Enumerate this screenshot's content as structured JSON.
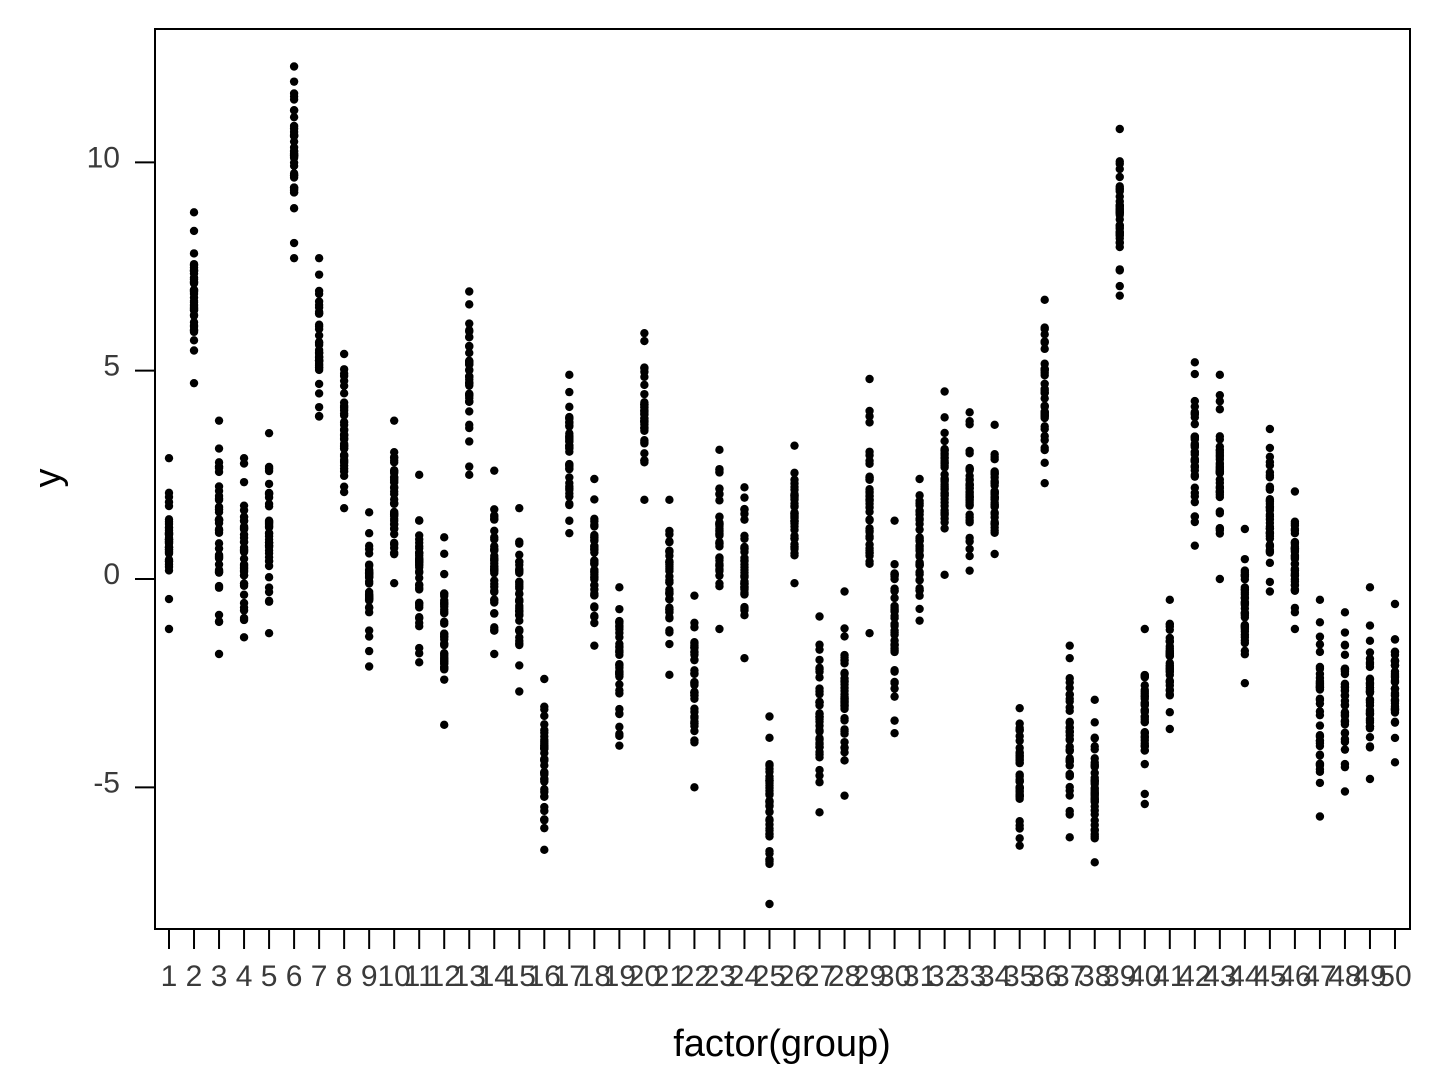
{
  "chart_data": {
    "type": "scatter",
    "xlabel": "factor(group)",
    "ylabel": "y",
    "x_categories": [
      "1",
      "2",
      "3",
      "4",
      "5",
      "6",
      "7",
      "8",
      "9",
      "10",
      "11",
      "12",
      "13",
      "14",
      "15",
      "16",
      "17",
      "18",
      "19",
      "20",
      "21",
      "22",
      "23",
      "24",
      "25",
      "26",
      "27",
      "28",
      "29",
      "30",
      "31",
      "32",
      "33",
      "34",
      "35",
      "36",
      "37",
      "38",
      "39",
      "40",
      "41",
      "42",
      "43",
      "44",
      "45",
      "46",
      "47",
      "48",
      "49",
      "50"
    ],
    "y_ticks": [
      -5,
      0,
      5,
      10
    ],
    "y_tick_labels": [
      "-5",
      "0",
      "5",
      "10"
    ],
    "ylim": [
      -8.4,
      13.2
    ],
    "grid": false,
    "legend": "none",
    "point_color": "#000000",
    "group_ranges": [
      {
        "group": "1",
        "min": -1.2,
        "max": 2.9
      },
      {
        "group": "2",
        "min": 4.7,
        "max": 8.8
      },
      {
        "group": "3",
        "min": -1.8,
        "max": 3.8
      },
      {
        "group": "4",
        "min": -1.4,
        "max": 2.9
      },
      {
        "group": "5",
        "min": -1.3,
        "max": 3.5
      },
      {
        "group": "6",
        "min": 7.7,
        "max": 12.3
      },
      {
        "group": "7",
        "min": 3.9,
        "max": 7.7
      },
      {
        "group": "8",
        "min": 1.7,
        "max": 5.4
      },
      {
        "group": "9",
        "min": -2.1,
        "max": 1.6
      },
      {
        "group": "10",
        "min": -0.1,
        "max": 3.8
      },
      {
        "group": "11",
        "min": -2.0,
        "max": 2.5
      },
      {
        "group": "12",
        "min": -3.5,
        "max": 1.0
      },
      {
        "group": "13",
        "min": 2.5,
        "max": 6.9
      },
      {
        "group": "14",
        "min": -1.8,
        "max": 2.6
      },
      {
        "group": "15",
        "min": -2.7,
        "max": 1.7
      },
      {
        "group": "16",
        "min": -6.5,
        "max": -2.4
      },
      {
        "group": "17",
        "min": 1.1,
        "max": 4.9
      },
      {
        "group": "18",
        "min": -1.6,
        "max": 2.4
      },
      {
        "group": "19",
        "min": -4.0,
        "max": -0.2
      },
      {
        "group": "20",
        "min": 1.9,
        "max": 5.9
      },
      {
        "group": "21",
        "min": -2.3,
        "max": 1.9
      },
      {
        "group": "22",
        "min": -5.0,
        "max": -0.4
      },
      {
        "group": "23",
        "min": -1.2,
        "max": 3.1
      },
      {
        "group": "24",
        "min": -1.9,
        "max": 2.2
      },
      {
        "group": "25",
        "min": -7.8,
        "max": -3.3
      },
      {
        "group": "26",
        "min": -0.1,
        "max": 3.2
      },
      {
        "group": "27",
        "min": -5.6,
        "max": -0.9
      },
      {
        "group": "28",
        "min": -5.2,
        "max": -0.3
      },
      {
        "group": "29",
        "min": -1.3,
        "max": 4.8
      },
      {
        "group": "30",
        "min": -3.7,
        "max": 1.4
      },
      {
        "group": "31",
        "min": -1.0,
        "max": 2.4
      },
      {
        "group": "32",
        "min": 0.1,
        "max": 4.5
      },
      {
        "group": "33",
        "min": 0.2,
        "max": 4.0
      },
      {
        "group": "34",
        "min": 0.6,
        "max": 3.7
      },
      {
        "group": "35",
        "min": -6.4,
        "max": -3.1
      },
      {
        "group": "36",
        "min": 2.3,
        "max": 6.7
      },
      {
        "group": "37",
        "min": -6.2,
        "max": -1.6
      },
      {
        "group": "38",
        "min": -6.8,
        "max": -2.9
      },
      {
        "group": "39",
        "min": 6.8,
        "max": 10.8
      },
      {
        "group": "40",
        "min": -5.4,
        "max": -1.2
      },
      {
        "group": "41",
        "min": -3.6,
        "max": -0.5
      },
      {
        "group": "42",
        "min": 0.8,
        "max": 5.2
      },
      {
        "group": "43",
        "min": 0.0,
        "max": 4.9
      },
      {
        "group": "44",
        "min": -2.5,
        "max": 1.2
      },
      {
        "group": "45",
        "min": -0.3,
        "max": 3.6
      },
      {
        "group": "46",
        "min": -1.2,
        "max": 2.1
      },
      {
        "group": "47",
        "min": -5.7,
        "max": -0.5
      },
      {
        "group": "48",
        "min": -5.1,
        "max": -0.8
      },
      {
        "group": "49",
        "min": -4.8,
        "max": -0.2
      },
      {
        "group": "50",
        "min": -4.4,
        "max": -0.6
      }
    ]
  }
}
